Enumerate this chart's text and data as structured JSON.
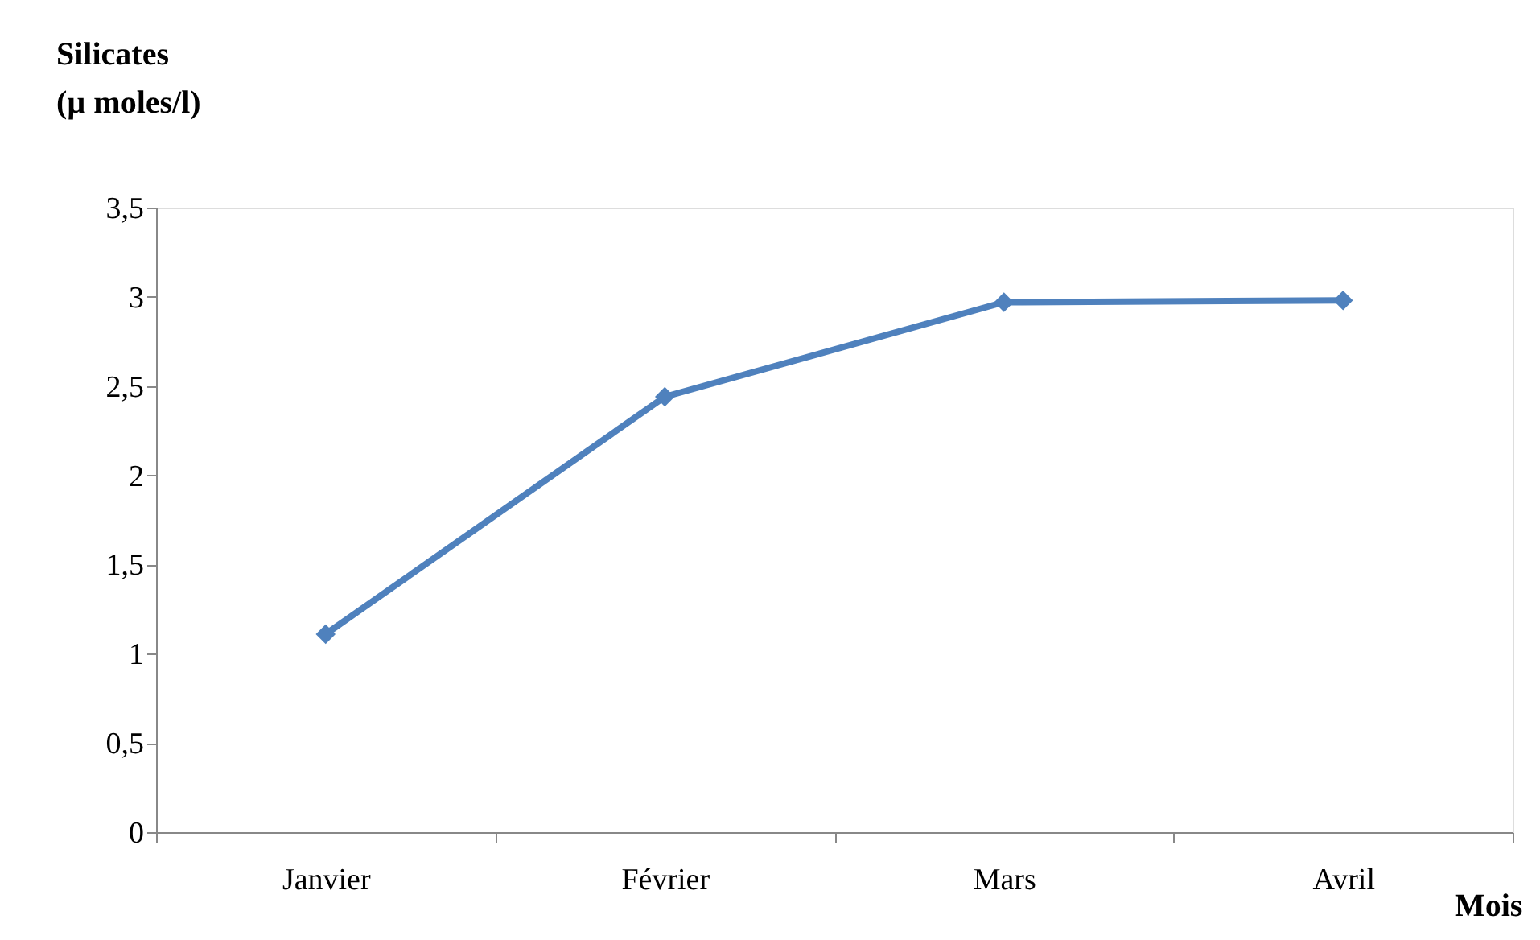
{
  "chart_data": {
    "type": "line",
    "xlabel": "Mois",
    "ylabel": "Silicates\n(µ moles/l)",
    "categories": [
      "Janvier",
      "Février",
      "Mars",
      "Avril"
    ],
    "series": [
      {
        "color": "#4f81bd",
        "values": [
          1.11,
          2.44,
          2.97,
          2.98
        ]
      }
    ],
    "ylim": [
      0,
      3.5
    ],
    "yticks": [
      0,
      {
        "value": 0.5,
        "label": "0,5"
      },
      1,
      {
        "value": 1.5,
        "label": "1,5"
      },
      2,
      {
        "value": 2.5,
        "label": "2,5"
      },
      3,
      {
        "value": 3.5,
        "label": "3,5"
      }
    ],
    "marker": "diamond",
    "line_style": "solid",
    "grid": false
  }
}
